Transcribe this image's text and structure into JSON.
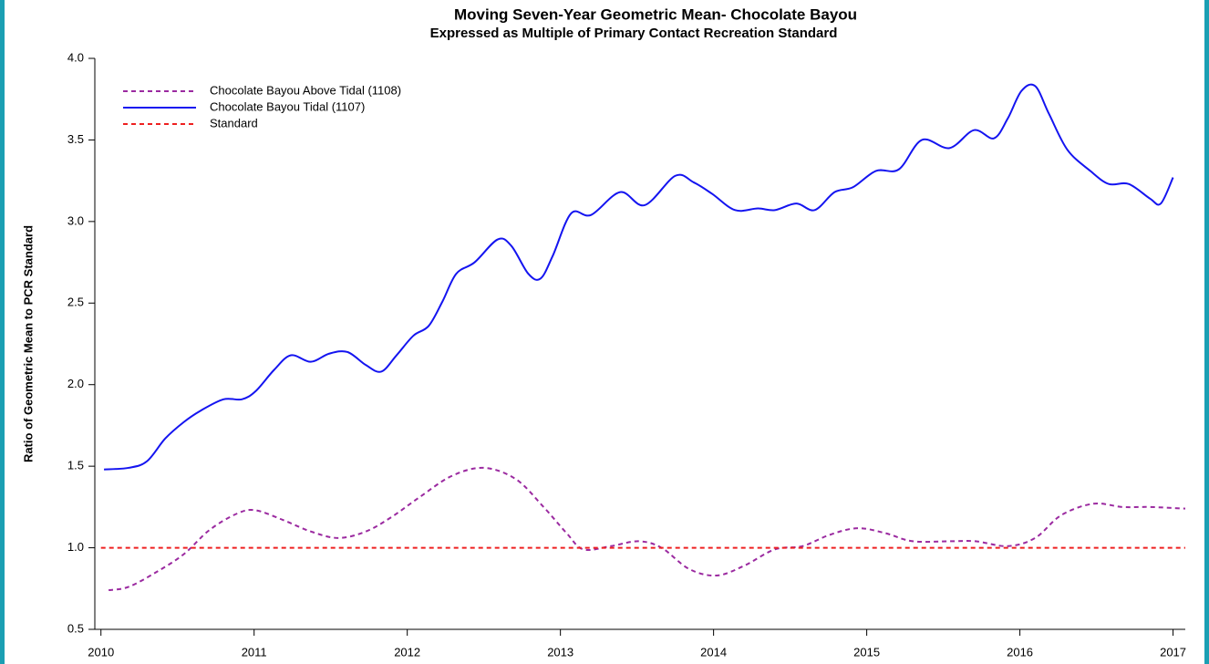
{
  "chart_data": {
    "type": "line",
    "title": "Moving Seven-Year Geometric Mean- Chocolate Bayou",
    "subtitle": "Expressed as Multiple of Primary Contact Recreation Standard",
    "y_label": "Ratio of Geometric Mean to PCR Standard",
    "xlim": [
      2009.96,
      2017.08
    ],
    "xticks": [
      2010,
      2011,
      2012,
      2013,
      2014,
      2015,
      2016,
      2017
    ],
    "ylim": [
      0.5,
      4.0
    ],
    "yticks": [
      {
        "value": 0.5,
        "label": "0.5"
      },
      {
        "value": 1.0,
        "label": "1.0"
      },
      {
        "value": 1.5,
        "label": "1.5"
      },
      {
        "value": 2.0,
        "label": "2.0"
      },
      {
        "value": 2.5,
        "label": "2.5"
      },
      {
        "value": 3.0,
        "label": "3.0"
      },
      {
        "value": 3.5,
        "label": "3.5"
      },
      {
        "value": 4.0,
        "label": "4.0"
      }
    ],
    "legend": "upper left",
    "series": [
      {
        "name": "Chocolate Bayou Above Tidal (1108)",
        "color": "#9b2aa0",
        "dash": true,
        "x": [
          2010.05,
          2010.18,
          2010.36,
          2010.54,
          2010.71,
          2010.89,
          2011.01,
          2011.19,
          2011.37,
          2011.55,
          2011.73,
          2011.9,
          2012.08,
          2012.29,
          2012.5,
          2012.71,
          2012.89,
          2013.04,
          2013.15,
          2013.33,
          2013.51,
          2013.66,
          2013.84,
          2014.02,
          2014.2,
          2014.4,
          2014.58,
          2014.76,
          2014.94,
          2015.12,
          2015.3,
          2015.54,
          2015.71,
          2015.92,
          2016.1,
          2016.27,
          2016.48,
          2016.67,
          2016.85,
          2017.08
        ],
        "values": [
          0.74,
          0.76,
          0.85,
          0.96,
          1.11,
          1.21,
          1.23,
          1.17,
          1.1,
          1.06,
          1.1,
          1.19,
          1.31,
          1.44,
          1.49,
          1.42,
          1.25,
          1.09,
          0.99,
          1.01,
          1.04,
          1.0,
          0.87,
          0.83,
          0.89,
          0.99,
          1.01,
          1.08,
          1.12,
          1.09,
          1.04,
          1.04,
          1.04,
          1.01,
          1.06,
          1.2,
          1.27,
          1.25,
          1.25,
          1.24
        ]
      },
      {
        "name": "Chocolate Bayou Tidal (1107)",
        "color": "#1414f0",
        "dash": false,
        "x": [
          2010.02,
          2010.18,
          2010.3,
          2010.42,
          2010.54,
          2010.65,
          2010.8,
          2010.92,
          2011.01,
          2011.13,
          2011.24,
          2011.37,
          2011.49,
          2011.61,
          2011.73,
          2011.83,
          2011.93,
          2012.04,
          2012.14,
          2012.23,
          2012.32,
          2012.44,
          2012.59,
          2012.68,
          2012.79,
          2012.87,
          2012.95,
          2013.07,
          2013.2,
          2013.39,
          2013.55,
          2013.75,
          2013.87,
          2013.99,
          2014.14,
          2014.29,
          2014.4,
          2014.54,
          2014.66,
          2014.79,
          2014.91,
          2015.06,
          2015.21,
          2015.36,
          2015.54,
          2015.7,
          2015.83,
          2015.92,
          2016.01,
          2016.1,
          2016.19,
          2016.31,
          2016.46,
          2016.58,
          2016.71,
          2016.85,
          2016.92,
          2017.0
        ],
        "values": [
          1.48,
          1.49,
          1.53,
          1.67,
          1.77,
          1.84,
          1.91,
          1.91,
          1.96,
          2.09,
          2.18,
          2.14,
          2.19,
          2.2,
          2.12,
          2.08,
          2.18,
          2.3,
          2.36,
          2.51,
          2.68,
          2.75,
          2.89,
          2.85,
          2.68,
          2.65,
          2.79,
          3.05,
          3.04,
          3.18,
          3.1,
          3.28,
          3.24,
          3.17,
          3.07,
          3.08,
          3.07,
          3.11,
          3.07,
          3.18,
          3.21,
          3.31,
          3.32,
          3.5,
          3.45,
          3.56,
          3.51,
          3.63,
          3.8,
          3.83,
          3.66,
          3.44,
          3.31,
          3.23,
          3.23,
          3.14,
          3.11,
          3.27
        ]
      },
      {
        "name": "Standard",
        "color": "#ee2020",
        "dash": true,
        "x": [
          2010.0,
          2017.08
        ],
        "values": [
          1.0,
          1.0
        ]
      }
    ]
  }
}
